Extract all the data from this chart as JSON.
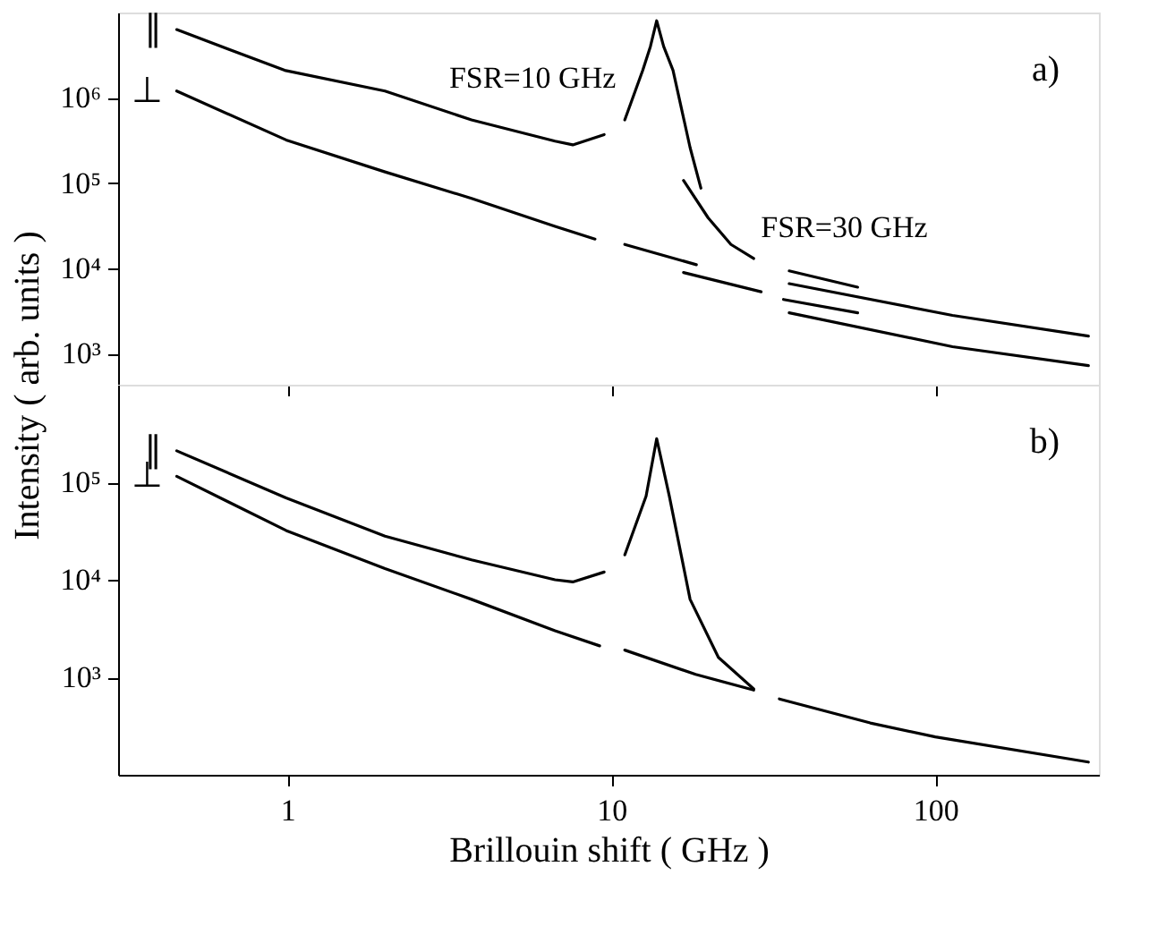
{
  "chart_data": [
    {
      "type": "line",
      "log": "xy",
      "grid": false,
      "legend": false,
      "tick_labels": "y",
      "ylabel": "Intensity ( arb. units )",
      "xlim": [
        0.3,
        320
      ],
      "xticks": [
        1,
        10,
        100
      ],
      "ylim": [
        430,
        10000000
      ],
      "yticks": [
        {
          "value": 1000,
          "label": "10³"
        },
        {
          "value": 10000,
          "label": "10⁴"
        },
        {
          "value": 100000,
          "label": "10⁵"
        },
        {
          "value": 1000000,
          "label": "10⁶"
        }
      ],
      "annotations": [
        "a)",
        {
          "text": "FSR=10 GHz",
          "x": 3,
          "y": 730000
        },
        {
          "text": "FSR=30 GHz",
          "x": 27.5,
          "y": 13000
        }
      ],
      "series": [
        {
          "name": "∥",
          "color": "#000000",
          "x": [
            0.455,
            0.98,
            2.0,
            3.7,
            6.7,
            7.6,
            9.5
          ],
          "values": [
            6300000,
            2100000,
            1200000,
            550000,
            310000,
            280000,
            370000
          ]
        },
        {
          "color": "#000000",
          "x": [
            11.0,
            12.5,
            13.2,
            13.8,
            14.5,
            15.5,
            17.5,
            18.9
          ],
          "values": [
            550000,
            2100000,
            4000000,
            8000000,
            4000000,
            2100000,
            260000,
            87000
          ]
        },
        {
          "color": "#000000",
          "x": [
            16.7,
            19.9,
            23.4,
            27.5
          ],
          "values": [
            107000,
            39000,
            19000,
            13000
          ]
        },
        {
          "color": "#000000",
          "x": [
            35.4,
            57.6
          ],
          "values": [
            9300,
            6000
          ]
        },
        {
          "color": "#000000",
          "x": [
            35.4,
            113,
            297
          ],
          "values": [
            6600,
            2800,
            1600
          ]
        },
        {
          "name": "⊥",
          "color": "#000000",
          "x": [
            0.455,
            0.99,
            2.0,
            3.7,
            6.7,
            8.9
          ],
          "values": [
            1200000,
            320000,
            135000,
            66000,
            31000,
            22000
          ]
        },
        {
          "color": "#000000",
          "x": [
            11.0,
            18.3
          ],
          "values": [
            19000,
            11000
          ]
        },
        {
          "color": "#000000",
          "x": [
            16.7,
            29
          ],
          "values": [
            8900,
            5300
          ]
        },
        {
          "color": "#000000",
          "x": [
            34,
            57.6
          ],
          "values": [
            4300,
            3000
          ]
        },
        {
          "color": "#000000",
          "x": [
            35.4,
            113,
            297
          ],
          "values": [
            3000,
            1200,
            720
          ]
        }
      ]
    },
    {
      "type": "line",
      "log": "xy",
      "grid": false,
      "legend": false,
      "xlabel": "Brillouin shift ( GHz )",
      "xlim": [
        0.3,
        320
      ],
      "xticks": [
        1,
        10,
        100
      ],
      "ylim": [
        100,
        1000000
      ],
      "yticks": [
        {
          "value": 1000,
          "label": "10³"
        },
        {
          "value": 10000,
          "label": "10⁴"
        },
        {
          "value": 100000,
          "label": "10⁵"
        }
      ],
      "annotations": [
        "b)"
      ],
      "series": [
        {
          "name": "∥",
          "color": "#000000",
          "x": [
            0.455,
            0.99,
            2.0,
            3.7,
            6.7,
            7.6,
            9.5
          ],
          "values": [
            210000,
            69000,
            28000,
            16000,
            10000,
            9500,
            12000
          ]
        },
        {
          "color": "#000000",
          "x": [
            11.0,
            12.8,
            13.8,
            15.1,
            17.5,
            21.4,
            27.5
          ],
          "values": [
            18000,
            72000,
            280000,
            72000,
            6300,
            1600,
            760
          ]
        },
        {
          "name": "⊥",
          "color": "#000000",
          "x": [
            0.455,
            0.99,
            2.0,
            3.7,
            6.7,
            9.2
          ],
          "values": [
            115000,
            32000,
            13000,
            6300,
            3000,
            2100
          ]
        },
        {
          "color": "#000000",
          "x": [
            11.0,
            18.2,
            27.5
          ],
          "values": [
            1900,
            1070,
            740
          ]
        },
        {
          "color": "#000000",
          "x": [
            33,
            63,
            100,
            297
          ],
          "values": [
            600,
            340,
            245,
            135
          ]
        }
      ]
    }
  ]
}
